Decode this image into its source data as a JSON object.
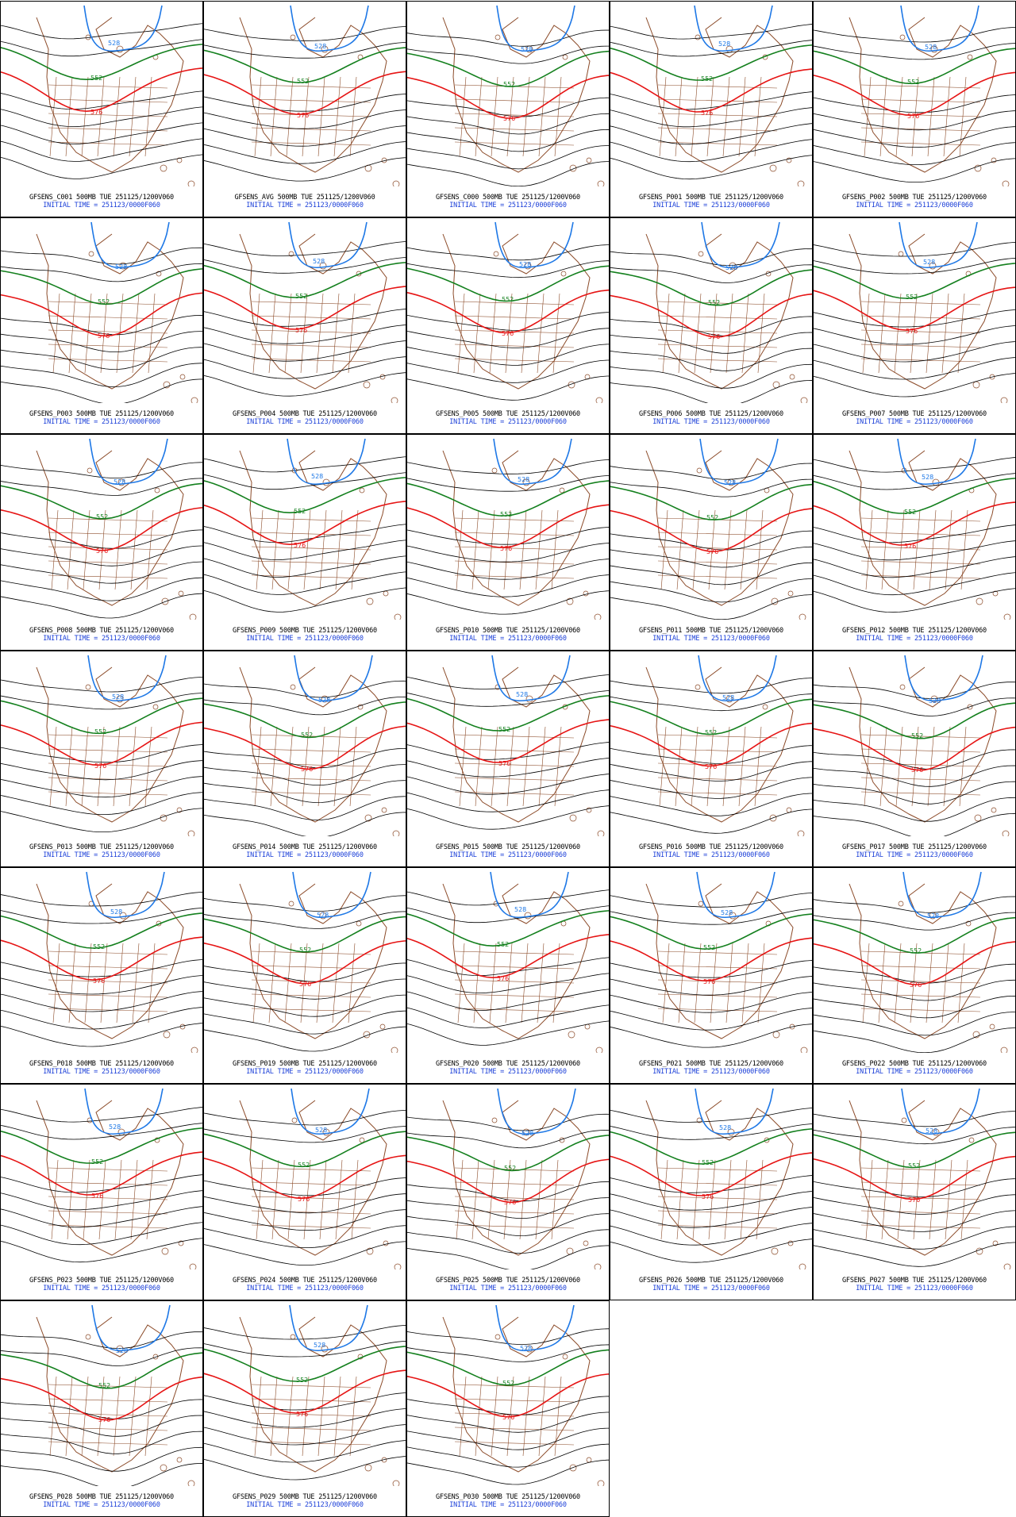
{
  "colors": {
    "black_contour": "#000000",
    "blue_contour": "#1e78e6",
    "green_contour": "#14801e",
    "red_contour": "#e61414",
    "map_outline": "#8b4a28",
    "caption_line1": "#000000",
    "caption_line2": "#1b3fd8"
  },
  "contour_labels": {
    "blue": "528",
    "green": "552",
    "red": "576"
  },
  "panels": [
    {
      "member": "C001",
      "line1": "GFSENS_C001 500MB TUE 251125/1200V060",
      "line2": "INITIAL TIME = 251123/0000F060"
    },
    {
      "member": "AVG",
      "line1": "GFSENS_AVG 500MB TUE 251125/1200V060",
      "line2": "INITIAL TIME = 251123/0000F060"
    },
    {
      "member": "C000",
      "line1": "GFSENS_C000 500MB TUE 251125/1200V060",
      "line2": "INITIAL TIME = 251123/0000F060"
    },
    {
      "member": "P001",
      "line1": "GFSENS_P001 500MB TUE 251125/1200V060",
      "line2": "INITIAL TIME = 251123/0000F060"
    },
    {
      "member": "P002",
      "line1": "GFSENS_P002 500MB TUE 251125/1200V060",
      "line2": "INITIAL TIME = 251123/0000F060"
    },
    {
      "member": "P003",
      "line1": "GFSENS_P003 500MB TUE 251125/1200V060",
      "line2": "INITIAL TIME = 251123/0000F060"
    },
    {
      "member": "P004",
      "line1": "GFSENS_P004 500MB TUE 251125/1200V060",
      "line2": "INITIAL TIME = 251123/0000F060"
    },
    {
      "member": "P005",
      "line1": "GFSENS_P005 500MB TUE 251125/1200V060",
      "line2": "INITIAL TIME = 251123/0000F060"
    },
    {
      "member": "P006",
      "line1": "GFSENS_P006 500MB TUE 251125/1200V060",
      "line2": "INITIAL TIME = 251123/0000F060"
    },
    {
      "member": "P007",
      "line1": "GFSENS_P007 500MB TUE 251125/1200V060",
      "line2": "INITIAL TIME = 251123/0000F060"
    },
    {
      "member": "P008",
      "line1": "GFSENS_P008 500MB TUE 251125/1200V060",
      "line2": "INITIAL TIME = 251123/0000F060"
    },
    {
      "member": "P009",
      "line1": "GFSENS_P009 500MB TUE 251125/1200V060",
      "line2": "INITIAL TIME = 251123/0000F060"
    },
    {
      "member": "P010",
      "line1": "GFSENS_P010 500MB TUE 251125/1200V060",
      "line2": "INITIAL TIME = 251123/0000F060"
    },
    {
      "member": "P011",
      "line1": "GFSENS_P011 500MB TUE 251125/1200V060",
      "line2": "INITIAL TIME = 251123/0000F060"
    },
    {
      "member": "P012",
      "line1": "GFSENS_P012 500MB TUE 251125/1200V060",
      "line2": "INITIAL TIME = 251123/0000F060"
    },
    {
      "member": "P013",
      "line1": "GFSENS_P013 500MB TUE 251125/1200V060",
      "line2": "INITIAL TIME = 251123/0000F060"
    },
    {
      "member": "P014",
      "line1": "GFSENS_P014 500MB TUE 251125/1200V060",
      "line2": "INITIAL TIME = 251123/0000F060"
    },
    {
      "member": "P015",
      "line1": "GFSENS_P015 500MB TUE 251125/1200V060",
      "line2": "INITIAL TIME = 251123/0000F060"
    },
    {
      "member": "P016",
      "line1": "GFSENS_P016 500MB TUE 251125/1200V060",
      "line2": "INITIAL TIME = 251123/0000F060"
    },
    {
      "member": "P017",
      "line1": "GFSENS_P017 500MB TUE 251125/1200V060",
      "line2": "INITIAL TIME = 251123/0000F060"
    },
    {
      "member": "P018",
      "line1": "GFSENS_P018 500MB TUE 251125/1200V060",
      "line2": "INITIAL TIME = 251123/0000F060"
    },
    {
      "member": "P019",
      "line1": "GFSENS_P019 500MB TUE 251125/1200V060",
      "line2": "INITIAL TIME = 251123/0000F060"
    },
    {
      "member": "P020",
      "line1": "GFSENS_P020 500MB TUE 251125/1200V060",
      "line2": "INITIAL TIME = 251123/0000F060"
    },
    {
      "member": "P021",
      "line1": "GFSENS_P021 500MB TUE 251125/1200V060",
      "line2": "INITIAL TIME = 251123/0000F060"
    },
    {
      "member": "P022",
      "line1": "GFSENS_P022 500MB TUE 251125/1200V060",
      "line2": "INITIAL TIME = 251123/0000F060"
    },
    {
      "member": "P023",
      "line1": "GFSENS_P023 500MB TUE 251125/1200V060",
      "line2": "INITIAL TIME = 251123/0000F060"
    },
    {
      "member": "P024",
      "line1": "GFSENS_P024 500MB TUE 251125/1200V060",
      "line2": "INITIAL TIME = 251123/0000F060"
    },
    {
      "member": "P025",
      "line1": "GFSENS_P025 500MB TUE 251125/1200V060",
      "line2": "INITIAL TIME = 251123/0000F060"
    },
    {
      "member": "P026",
      "line1": "GFSENS_P026 500MB TUE 251125/1200V060",
      "line2": "INITIAL TIME = 251123/0000F060"
    },
    {
      "member": "P027",
      "line1": "GFSENS_P027 500MB TUE 251125/1200V060",
      "line2": "INITIAL TIME = 251123/0000F060"
    },
    {
      "member": "P028",
      "line1": "GFSENS_P028 500MB TUE 251125/1200V060",
      "line2": "INITIAL TIME = 251123/0000F060"
    },
    {
      "member": "P029",
      "line1": "GFSENS_P029 500MB TUE 251125/1200V060",
      "line2": "INITIAL TIME = 251123/0000F060"
    },
    {
      "member": "P030",
      "line1": "GFSENS_P030 500MB TUE 251125/1200V060",
      "line2": "INITIAL TIME = 251123/0000F060"
    }
  ]
}
